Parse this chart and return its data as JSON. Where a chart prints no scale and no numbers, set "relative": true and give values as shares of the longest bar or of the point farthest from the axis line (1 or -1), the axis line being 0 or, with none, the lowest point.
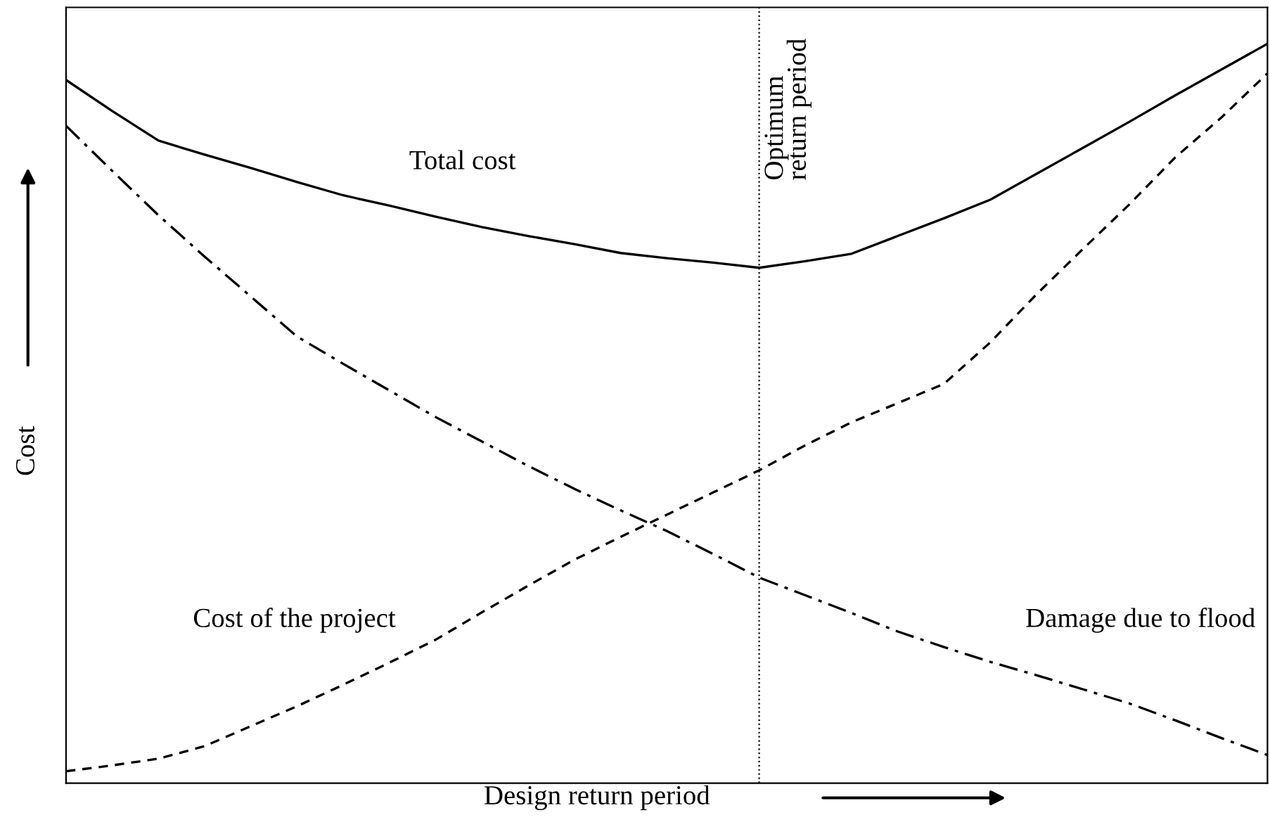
{
  "chart_data": {
    "type": "line",
    "relative": true,
    "xlabel": "Design return period",
    "ylabel": "Cost",
    "categories": [
      null,
      null,
      null,
      null,
      null,
      null,
      null,
      null,
      null,
      null,
      null,
      null,
      null,
      null,
      null,
      null,
      null,
      null,
      null,
      null,
      null,
      null,
      null,
      null,
      null,
      null,
      null
    ],
    "series": [
      {
        "color": "#000000",
        "line_style": "solid",
        "values": [
          0.951,
          0.909,
          0.869,
          0.85,
          0.832,
          0.813,
          0.795,
          0.781,
          0.766,
          0.752,
          0.74,
          0.729,
          0.717,
          0.71,
          0.704,
          0.697,
          0.706,
          0.716,
          0.74,
          0.764,
          0.789,
          0.824,
          0.859,
          0.894,
          0.93,
          0.965,
          1
        ]
      },
      {
        "color": "#000000",
        "line_style": "dashdot",
        "values": [
          0.889,
          0.828,
          0.768,
          0.712,
          0.658,
          0.604,
          0.567,
          0.531,
          0.495,
          0.462,
          0.429,
          0.398,
          0.369,
          0.341,
          0.31,
          0.278,
          0.254,
          0.23,
          0.205,
          0.184,
          0.164,
          0.146,
          0.127,
          0.108,
          0.085,
          0.061,
          0.038
        ]
      },
      {
        "color": "#000000",
        "line_style": "dashed",
        "values": [
          0.016,
          0.024,
          0.033,
          0.05,
          0.077,
          0.104,
          0.133,
          0.163,
          0.194,
          0.231,
          0.267,
          0.302,
          0.333,
          0.363,
          0.393,
          0.423,
          0.457,
          0.488,
          0.514,
          0.54,
          0.596,
          0.661,
          0.722,
          0.782,
          0.846,
          0.9,
          0.96
        ]
      }
    ],
    "annotations": [
      "Total cost",
      "Cost of the project",
      "Damage due to flood",
      "Optimum\nreturn period"
    ],
    "legend": false,
    "grid": false,
    "marker": "none"
  }
}
